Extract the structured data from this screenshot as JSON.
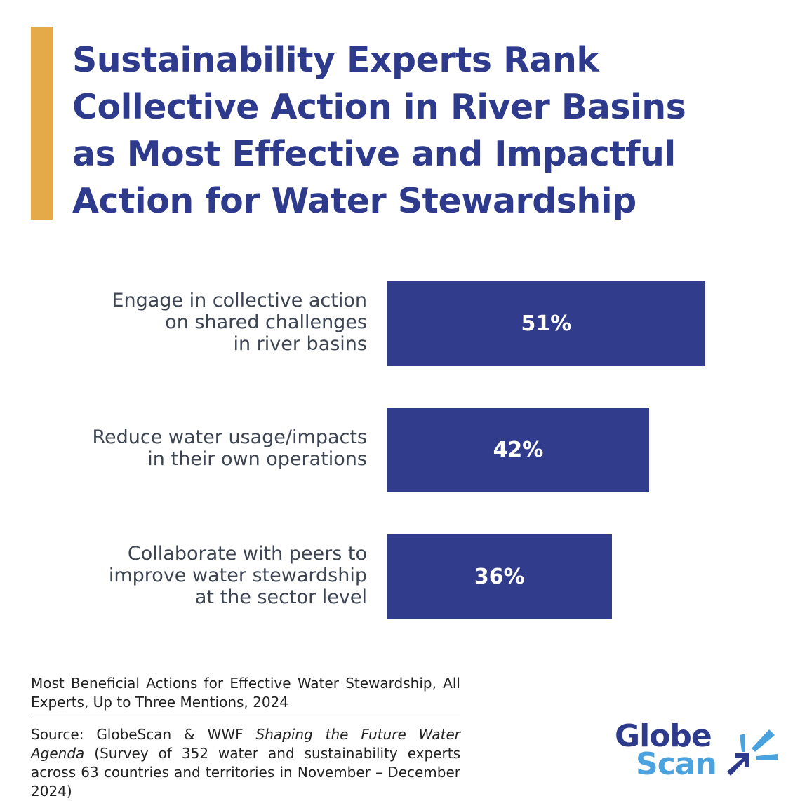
{
  "title": "Sustainability Experts Rank Collective Action in River Basins as Most Effective and Impactful Action for Water Stewardship",
  "title_lines": [
    "Sustainability Experts Rank",
    "Collective Action in River Basins",
    "as Most Effective and Impactful",
    "Action for Water Stewardship"
  ],
  "chart_data": {
    "type": "bar",
    "orientation": "horizontal",
    "categories": [
      "Engage in collective action on shared challenges in river basins",
      "Reduce water usage/impacts in their own operations",
      "Collaborate with peers to improve water stewardship at the sector level"
    ],
    "category_lines": [
      [
        "Engage in collective action",
        "on shared challenges",
        "in river basins"
      ],
      [
        "Reduce water usage/impacts",
        "in their own operations"
      ],
      [
        "Collaborate with peers to",
        "improve water stewardship",
        "at the sector level"
      ]
    ],
    "values": [
      51,
      42,
      36
    ],
    "data_labels": [
      "51%",
      "42%",
      "36%"
    ],
    "unit": "%",
    "grid": false,
    "bar_color": "#323c8c"
  },
  "footnote": {
    "description": "Most Beneficial Actions for Effective Water Stewardship, All Experts, Up to Three Mentions, 2024",
    "source_prefix": "Source: GlobeScan & WWF ",
    "source_title": "Shaping the Future Water Agenda",
    "survey": "(Survey of 352 water and sustainability experts across 63 countries and territories in November – December 2024)"
  },
  "logo": {
    "line1": "Globe",
    "line2": "Scan"
  },
  "colors": {
    "accent": "#e4aa4a",
    "navy": "#2e3a8c",
    "light_blue": "#4aa3df"
  }
}
